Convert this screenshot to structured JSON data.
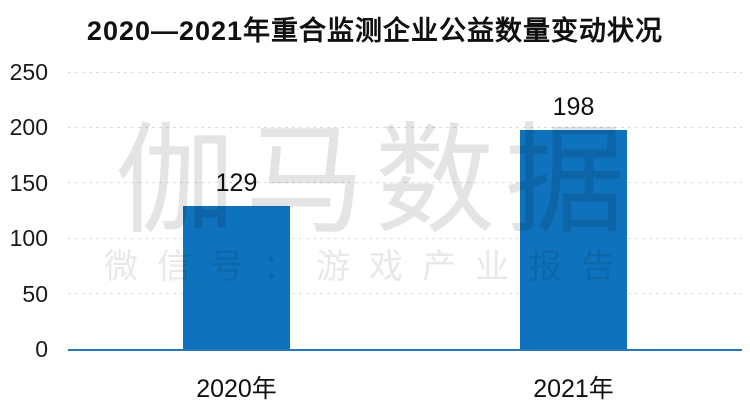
{
  "page": {
    "background": "#ffffff"
  },
  "chart_data": {
    "type": "bar",
    "title": "2020—2021年重合监测企业公益数量变动状况",
    "categories": [
      "2020年",
      "2021年"
    ],
    "values": [
      129,
      198
    ],
    "data_labels": [
      "129",
      "198"
    ],
    "xlabel": "",
    "ylabel": "",
    "ylim": [
      0,
      250
    ],
    "yticks": [
      0,
      50,
      100,
      150,
      200,
      250
    ],
    "grid": "horizontal-dashed",
    "legend": "none",
    "bar_color": "#0F72BC",
    "axis_line_color": "#2878B8",
    "gridline_color": "#DCDCDC",
    "text_color": "#1A1A1A"
  },
  "watermark": {
    "main": "伽马数据",
    "sub": "微信号：游戏产业报告"
  }
}
